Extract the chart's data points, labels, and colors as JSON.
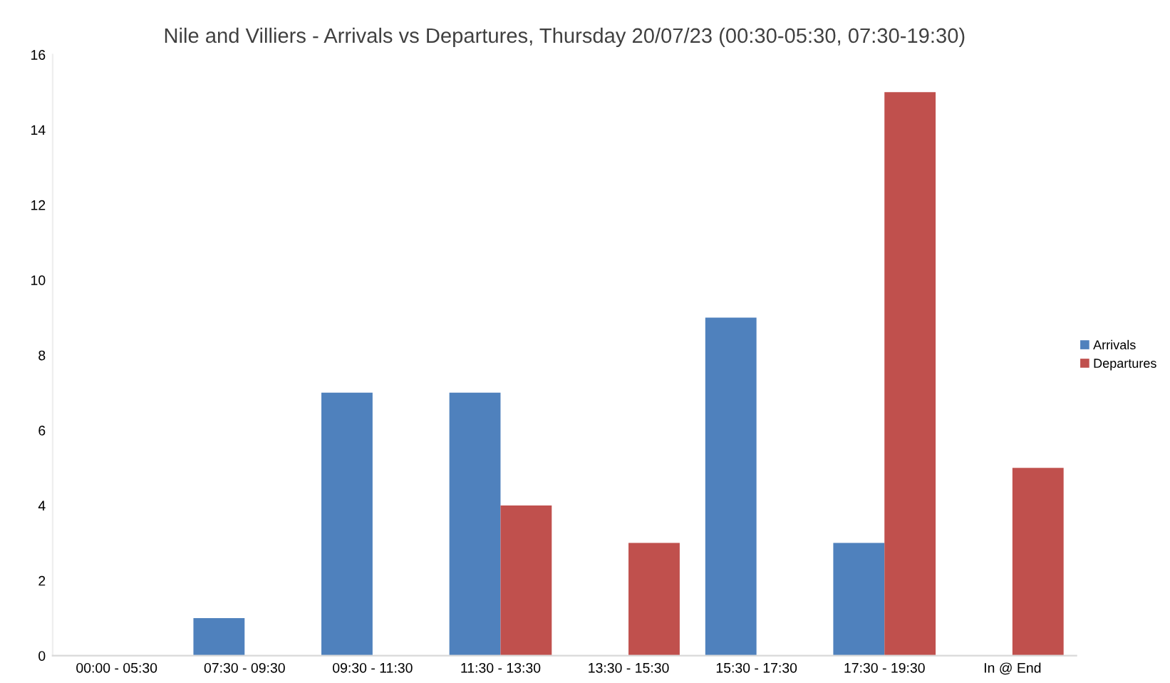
{
  "chart_data": {
    "type": "bar",
    "title": "Nile and Villiers - Arrivals vs Departures, Thursday 20/07/23 (00:30-05:30, 07:30-19:30)",
    "categories": [
      "00:00 - 05:30",
      "07:30 - 09:30",
      "09:30 - 11:30",
      "11:30 - 13:30",
      "13:30 - 15:30",
      "15:30 - 17:30",
      "17:30 - 19:30",
      "In @ End"
    ],
    "series": [
      {
        "name": "Arrivals",
        "color": "#4f81bd",
        "values": [
          0,
          1,
          7,
          7,
          0,
          9,
          3,
          0
        ]
      },
      {
        "name": "Departures",
        "color": "#c0504d",
        "values": [
          0,
          0,
          0,
          4,
          3,
          0,
          15,
          5
        ]
      }
    ],
    "ylim": [
      0,
      16
    ],
    "yticks": [
      0,
      2,
      4,
      6,
      8,
      10,
      12,
      14,
      16
    ],
    "grid": false,
    "legend": "right"
  }
}
